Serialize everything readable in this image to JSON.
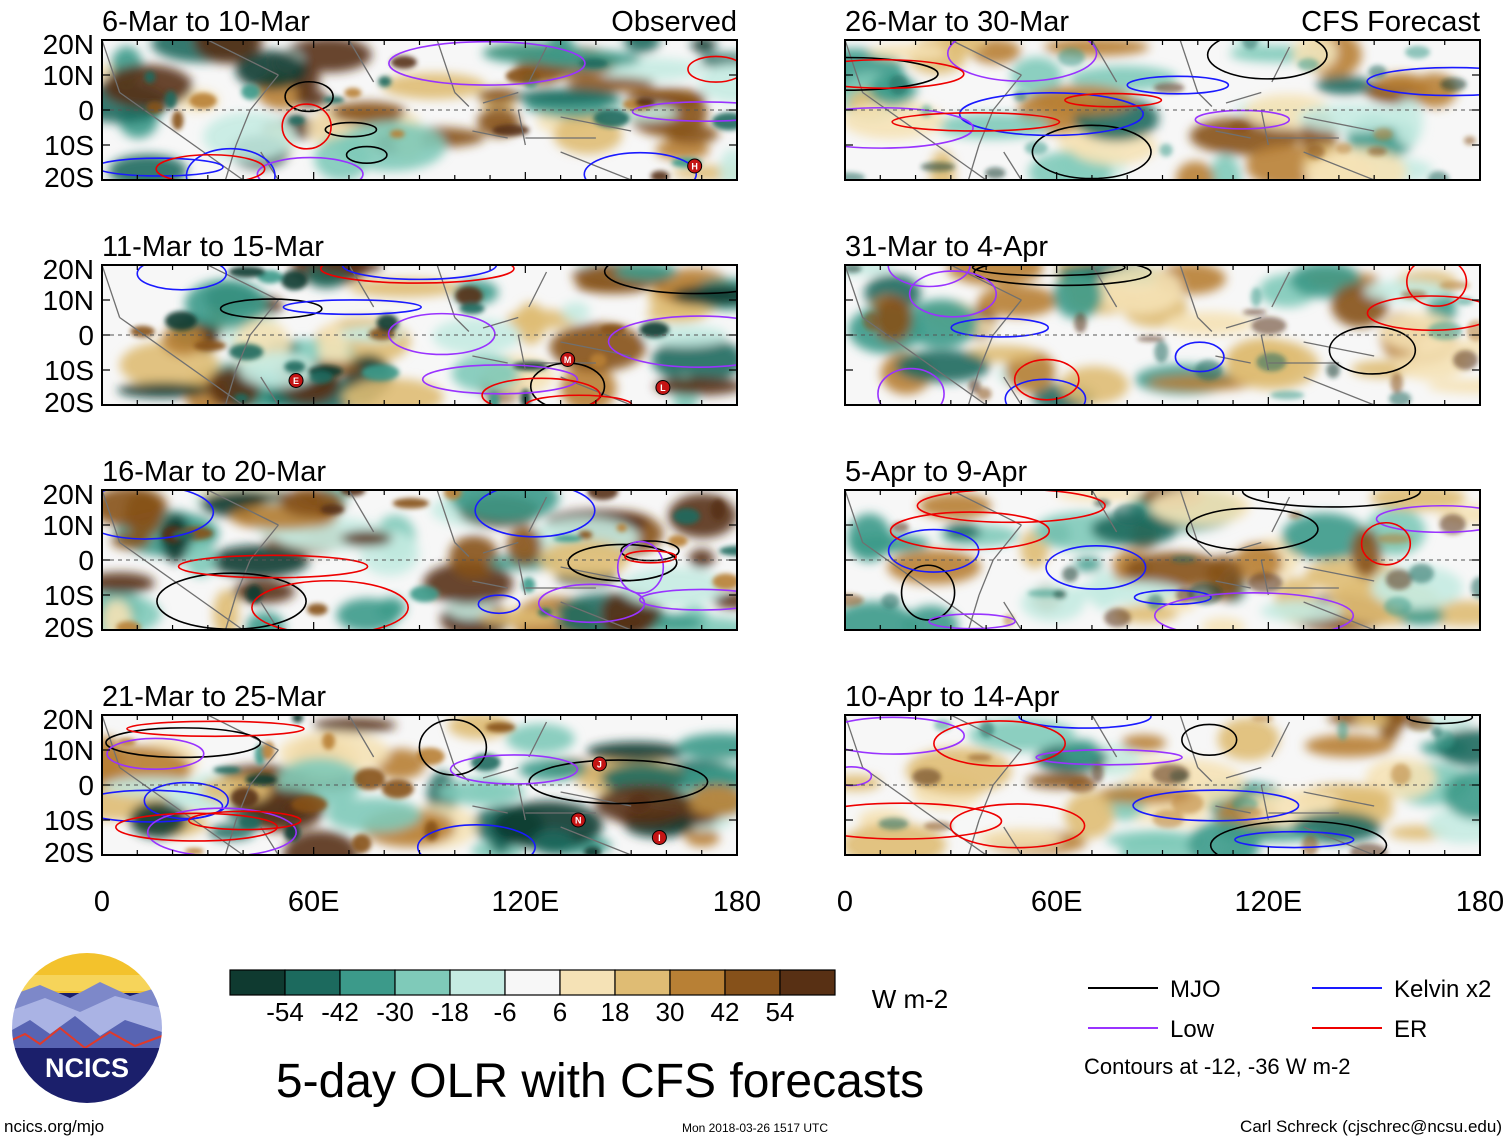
{
  "chart_data": {
    "type": "heatmap",
    "title": "5-day OLR with CFS forecasts",
    "colorbar": {
      "ticks": [
        "-54",
        "-42",
        "-30",
        "-18",
        "-6",
        "6",
        "18",
        "30",
        "42",
        "54"
      ],
      "colors": [
        "#0f3a30",
        "#1c6a5e",
        "#3c9a8a",
        "#7fcab9",
        "#c5ebe2",
        "#f7f7f7",
        "#f5e2b6",
        "#dfbc74",
        "#b88035",
        "#86511a",
        "#583014"
      ],
      "units": "W m-2"
    },
    "x_ticks": [
      "0",
      "60E",
      "120E",
      "180"
    ],
    "y_ticks": [
      "20N",
      "10N",
      "0",
      "10S",
      "20S"
    ],
    "x_range": [
      0,
      180
    ],
    "y_range": [
      -20,
      20
    ],
    "columns": [
      {
        "label": "Observed",
        "panels": [
          {
            "period": "6-Mar to 10-Mar",
            "tc": [
              {
                "letter": "H",
                "lon": 168,
                "lat": -16
              }
            ]
          },
          {
            "period": "11-Mar to 15-Mar",
            "tc": [
              {
                "letter": "E",
                "lon": 55,
                "lat": -13
              },
              {
                "letter": "M",
                "lon": 132,
                "lat": -7
              },
              {
                "letter": "L",
                "lon": 159,
                "lat": -15
              }
            ]
          },
          {
            "period": "16-Mar to 20-Mar",
            "tc": []
          },
          {
            "period": "21-Mar to 25-Mar",
            "tc": [
              {
                "letter": "J",
                "lon": 141,
                "lat": 6
              },
              {
                "letter": "N",
                "lon": 135,
                "lat": -10
              },
              {
                "letter": "I",
                "lon": 158,
                "lat": -15
              }
            ]
          }
        ]
      },
      {
        "label": "CFS Forecast",
        "panels": [
          {
            "period": "26-Mar to 30-Mar",
            "tc": []
          },
          {
            "period": "31-Mar to 4-Apr",
            "tc": []
          },
          {
            "period": "5-Apr to 9-Apr",
            "tc": []
          },
          {
            "period": "10-Apr to 14-Apr",
            "tc": []
          }
        ]
      }
    ],
    "legend": [
      {
        "name": "MJO",
        "color": "#000000"
      },
      {
        "name": "Kelvin x2",
        "color": "#1a1aff"
      },
      {
        "name": "Low",
        "color": "#9933ff"
      },
      {
        "name": "ER",
        "color": "#ee0000"
      }
    ],
    "contour_note": "Contours at -12, -36 W m-2"
  },
  "logo_text": "NCICS",
  "footer": {
    "left": "ncics.org/mjo",
    "center": "Mon 2018-03-26 1517 UTC",
    "right": "Carl Schreck (cjschrec@ncsu.edu)"
  }
}
